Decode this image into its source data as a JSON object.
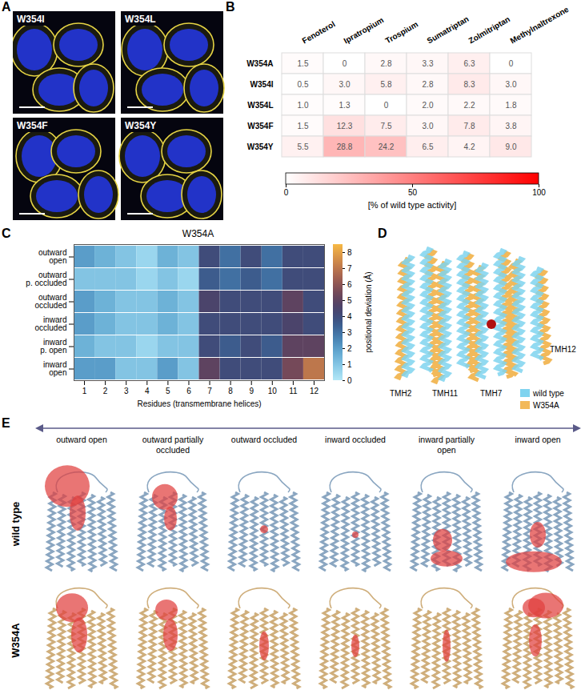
{
  "panel_A": {
    "panel": "A",
    "images": [
      "W354I",
      "W354L",
      "W354F",
      "W354Y"
    ]
  },
  "chart_data": [
    {
      "panel": "B",
      "type": "heatmap",
      "categories": [
        "Fenoterol",
        "Ipratropium",
        "Trospium",
        "Sumatriptan",
        "Zolmitriptan",
        "Methylnaltrexone"
      ],
      "rows": [
        "W354A",
        "W354I",
        "W354L",
        "W354F",
        "W354Y"
      ],
      "values": [
        [
          1.5,
          0,
          2.8,
          3.3,
          6.3,
          0
        ],
        [
          0.5,
          3.0,
          5.8,
          2.8,
          8.3,
          3.0
        ],
        [
          1.0,
          1.3,
          0,
          2.0,
          2.2,
          1.8
        ],
        [
          1.5,
          12.3,
          7.5,
          3.0,
          7.8,
          3.8
        ],
        [
          5.5,
          28.8,
          24.2,
          6.5,
          4.2,
          9.0
        ]
      ],
      "value_labels": [
        [
          "1.5",
          "0",
          "2.8",
          "3.3",
          "6.3",
          "0"
        ],
        [
          "0.5",
          "3.0",
          "5.8",
          "2.8",
          "8.3",
          "3.0"
        ],
        [
          "1.0",
          "1.3",
          "0",
          "2.0",
          "2.2",
          "1.8"
        ],
        [
          "1.5",
          "12.3",
          "7.5",
          "3.0",
          "7.8",
          "3.8"
        ],
        [
          "5.5",
          "28.8",
          "24.2",
          "6.5",
          "4.2",
          "9.0"
        ]
      ],
      "data_labels": true,
      "colorbar": {
        "range": [
          0,
          100
        ],
        "ticks": [
          0,
          50,
          100
        ],
        "label": "[% of wild type activity]",
        "colors": [
          "#ffffff",
          "#ff0000"
        ]
      }
    },
    {
      "panel": "C",
      "type": "heatmap",
      "title": "W354A",
      "x_label": "Residues (transmembrane helices)",
      "rows": [
        "outward open",
        "outward p. occluded",
        "outward occluded",
        "inward occluded",
        "inward p. open",
        "inward open"
      ],
      "x": [
        1,
        2,
        3,
        4,
        5,
        6,
        7,
        8,
        9,
        10,
        11,
        12
      ],
      "xlim": [
        0.5,
        12.5
      ],
      "xticks": [
        1,
        2,
        3,
        4,
        5,
        6,
        7,
        8,
        9,
        10,
        11,
        12
      ],
      "values": [
        [
          2,
          1.5,
          1,
          0.5,
          1.5,
          1,
          4,
          3,
          4,
          3,
          4,
          4
        ],
        [
          1,
          1,
          1,
          0.5,
          1,
          0.5,
          3.5,
          3,
          3.5,
          3,
          4,
          4
        ],
        [
          2,
          1.5,
          1,
          1,
          1.5,
          1,
          4.5,
          4,
          4,
          4,
          5,
          4
        ],
        [
          2,
          1.5,
          1,
          1,
          1.5,
          1,
          4,
          4,
          4,
          4,
          4.5,
          4
        ],
        [
          1.5,
          1,
          1,
          0.5,
          1,
          1,
          4,
          3.5,
          4,
          3.5,
          5,
          5
        ],
        [
          2,
          2,
          1,
          1,
          2,
          1,
          5,
          4,
          4,
          4,
          5.5,
          7
        ]
      ],
      "colorbar": {
        "range": [
          0,
          8.5
        ],
        "ticks": [
          0,
          1,
          2,
          3,
          4,
          5,
          6,
          7,
          8
        ],
        "label": "positional deviation (Å)",
        "colors": [
          "#b3e7f7",
          "#4a9fd0",
          "#2a2d63",
          "#a9574f",
          "#f7b944"
        ]
      }
    }
  ],
  "panel_D": {
    "panel": "D",
    "labels": [
      "TMH2",
      "TMH11",
      "TMH7",
      "TMH12"
    ],
    "legend": [
      {
        "name": "wild type",
        "color": "#7fd3ef"
      },
      {
        "name": "W354A",
        "color": "#f2b95a"
      }
    ]
  },
  "panel_E": {
    "panel": "E",
    "states": [
      "outward open",
      "outward partially occluded",
      "outward occluded",
      "inward occluded",
      "inward partially open",
      "inward open"
    ],
    "rows": [
      "wild type",
      "W354A"
    ]
  }
}
